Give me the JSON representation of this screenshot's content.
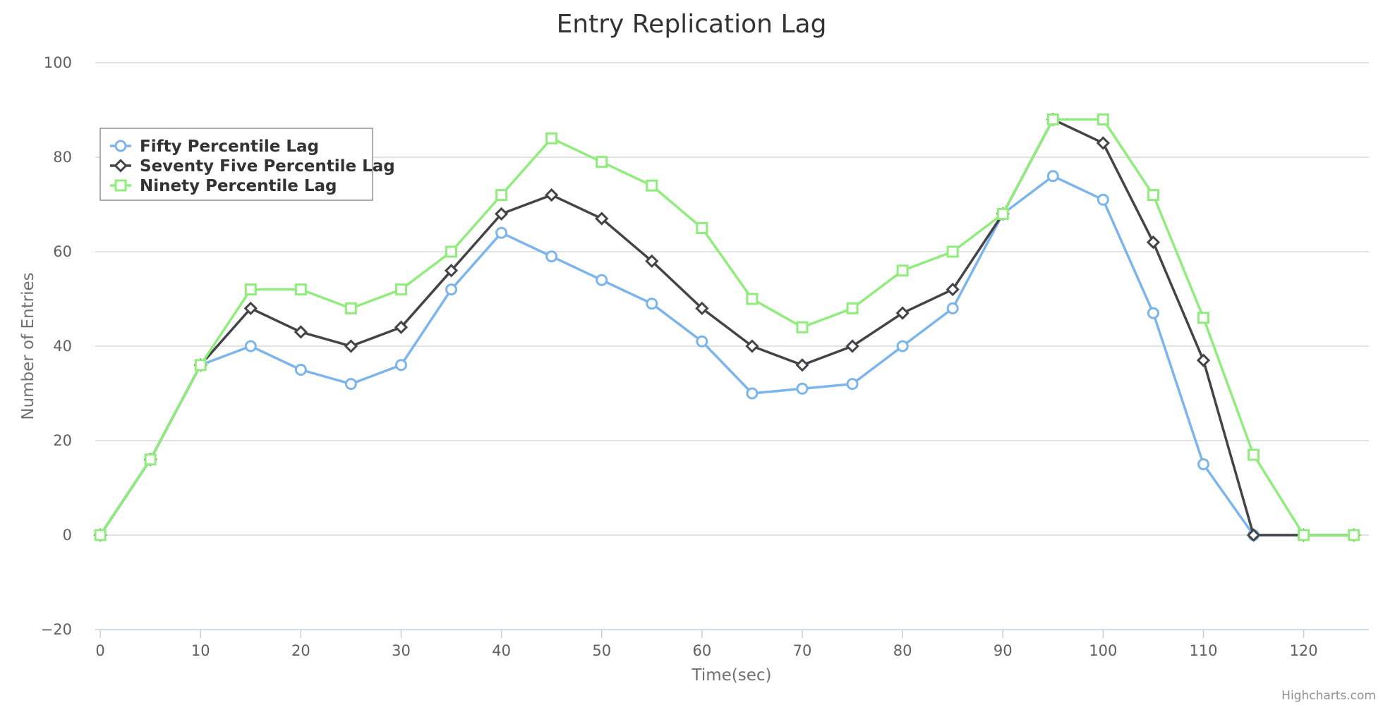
{
  "chart_data": {
    "type": "line",
    "title": "Entry Replication Lag",
    "xlabel": "Time(sec)",
    "ylabel": "Number of Entries",
    "xlim": [
      -0.5,
      126.5
    ],
    "ylim": [
      -20,
      100
    ],
    "x_ticks": [
      0,
      10,
      20,
      30,
      40,
      50,
      60,
      70,
      80,
      90,
      100,
      110,
      120
    ],
    "y_ticks": [
      -20,
      0,
      20,
      40,
      60,
      80,
      100
    ],
    "grid": true,
    "legend_position": "top-left",
    "x": [
      0,
      5,
      10,
      15,
      20,
      25,
      30,
      35,
      40,
      45,
      50,
      55,
      60,
      65,
      70,
      75,
      80,
      85,
      90,
      95,
      100,
      105,
      110,
      115,
      120,
      125
    ],
    "series": [
      {
        "name": "Fifty Percentile Lag",
        "color": "#7cb5ec",
        "marker": "circle",
        "values": [
          0,
          16,
          36,
          40,
          35,
          32,
          36,
          52,
          64,
          59,
          54,
          49,
          41,
          30,
          31,
          32,
          40,
          48,
          68,
          76,
          71,
          47,
          15,
          0,
          0,
          0
        ]
      },
      {
        "name": "Seventy Five Percentile Lag",
        "color": "#434348",
        "marker": "diamond",
        "values": [
          0,
          16,
          36,
          48,
          43,
          40,
          44,
          56,
          68,
          72,
          67,
          58,
          48,
          40,
          36,
          40,
          47,
          52,
          68,
          88,
          83,
          62,
          37,
          0,
          0,
          0
        ]
      },
      {
        "name": "Ninety Percentile Lag",
        "color": "#90ed7d",
        "marker": "square",
        "values": [
          0,
          16,
          36,
          52,
          52,
          48,
          52,
          60,
          72,
          84,
          79,
          74,
          65,
          50,
          44,
          48,
          56,
          60,
          68,
          88,
          88,
          72,
          46,
          17,
          0,
          0
        ]
      }
    ]
  },
  "credits": "Highcharts.com"
}
